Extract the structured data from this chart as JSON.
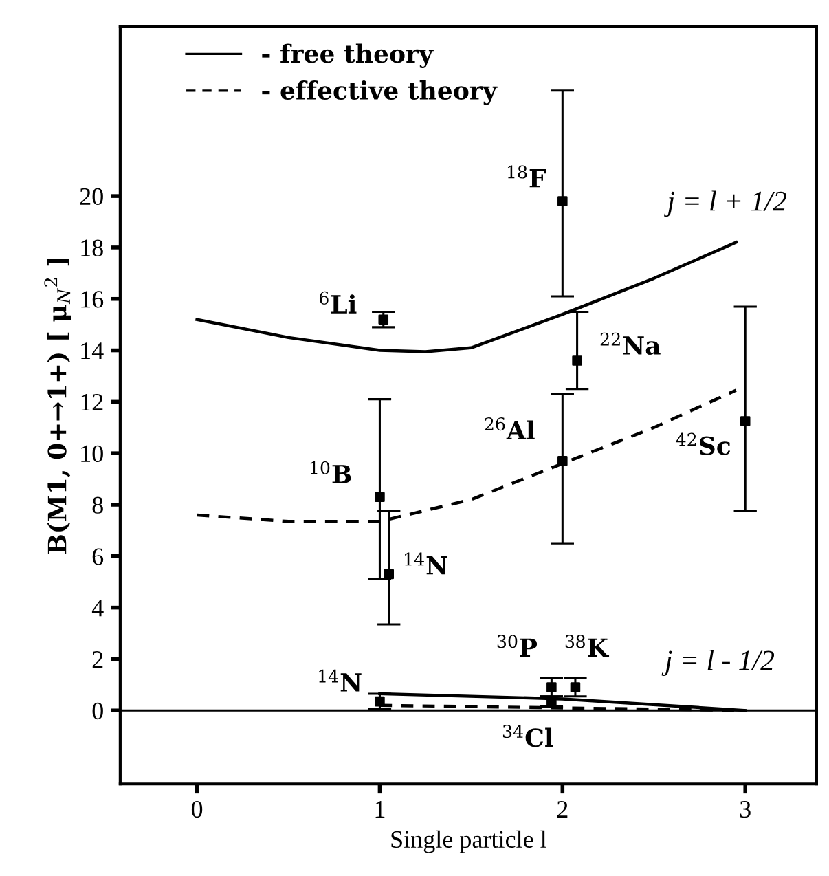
{
  "chart_data": {
    "type": "line",
    "xlabel": "Single particle l",
    "ylabel": "B(M1, 0+→1+) [ μ$_{N}$$^{2}$ ]",
    "xlim": [
      -0.42,
      3.39
    ],
    "xticks": [
      0,
      1,
      2,
      3
    ],
    "ylim": [
      -2.86,
      26.6
    ],
    "yticks": [
      0,
      2,
      4,
      6,
      8,
      10,
      12,
      14,
      16,
      18,
      20
    ],
    "grid": false,
    "legend": "top left",
    "series": [
      {
        "name": "- free theory",
        "color": "#000000",
        "line_style": "solid",
        "x": [
          0,
          0.5,
          1,
          1.25,
          1.5,
          2,
          2.5,
          2.95
        ],
        "values": [
          15.2,
          14.5,
          14.0,
          13.95,
          14.1,
          15.4,
          16.8,
          18.2
        ]
      },
      {
        "name": "- effective theory",
        "color": "#000000",
        "line_style": "dashed",
        "x": [
          0,
          0.5,
          1,
          1.5,
          2,
          2.5,
          2.95
        ],
        "values": [
          7.6,
          7.35,
          7.35,
          8.2,
          9.6,
          11.0,
          12.45
        ]
      },
      {
        "color": "#000000",
        "line_style": "solid",
        "x": [
          1,
          2,
          3
        ],
        "values": [
          0.65,
          0.45,
          0.0
        ]
      },
      {
        "color": "#000000",
        "line_style": "dashed",
        "x": [
          1,
          2,
          3
        ],
        "values": [
          0.2,
          0.1,
          0.0
        ]
      },
      {
        "type": "scatter",
        "color": "#000000",
        "marker": "square",
        "x": [
          1.02,
          1.0,
          1.05,
          2.0,
          2.08,
          2.0,
          3.0,
          1.0,
          1.94,
          1.94,
          2.07
        ],
        "values": [
          15.2,
          8.3,
          5.3,
          19.8,
          13.6,
          9.7,
          11.25,
          0.35,
          0.35,
          0.9,
          0.9
        ],
        "errors": [
          0.3,
          [
            5.1,
            12.1
          ],
          [
            3.35,
            7.75
          ],
          [
            16.1,
            24.1
          ],
          [
            12.5,
            15.5
          ],
          [
            6.5,
            12.3
          ],
          [
            7.75,
            15.7
          ],
          0.3,
          0.2,
          0.35,
          0.35
        ]
      }
    ],
    "ref_lines": [
      {
        "axis": "y",
        "value": 0,
        "color": "#000000",
        "line_style": "solid"
      }
    ],
    "annotations": [
      {
        "text": "$^{6}$Li",
        "x": 1.02,
        "y": 15.2
      },
      {
        "text": "$^{18}$F",
        "x": 2.0,
        "y": 19.8
      },
      {
        "text": "$^{22}$Na",
        "x": 2.08,
        "y": 13.6
      },
      {
        "text": "$^{26}$Al",
        "x": 2.0,
        "y": 9.7
      },
      {
        "text": "$^{42}$Sc",
        "x": 3.0,
        "y": 11.25
      },
      {
        "text": "$^{10}$B",
        "x": 1.0,
        "y": 8.3
      },
      {
        "text": "$^{14}$N",
        "x": 1.05,
        "y": 5.3
      },
      {
        "text": "$^{14}$N",
        "x": 1.0,
        "y": 0.35
      },
      {
        "text": "$^{30}$P",
        "x": 1.94,
        "y": 0.9
      },
      {
        "text": "$^{38}$K",
        "x": 2.07,
        "y": 0.9
      },
      {
        "text": "$^{34}$Cl",
        "x": 1.94,
        "y": 0.35
      },
      {
        "text": "j = l + 1/2",
        "x": 2.95,
        "y": 18.2
      },
      {
        "text": "j = l - 1/2",
        "x": 3,
        "y": 0.0
      }
    ]
  }
}
